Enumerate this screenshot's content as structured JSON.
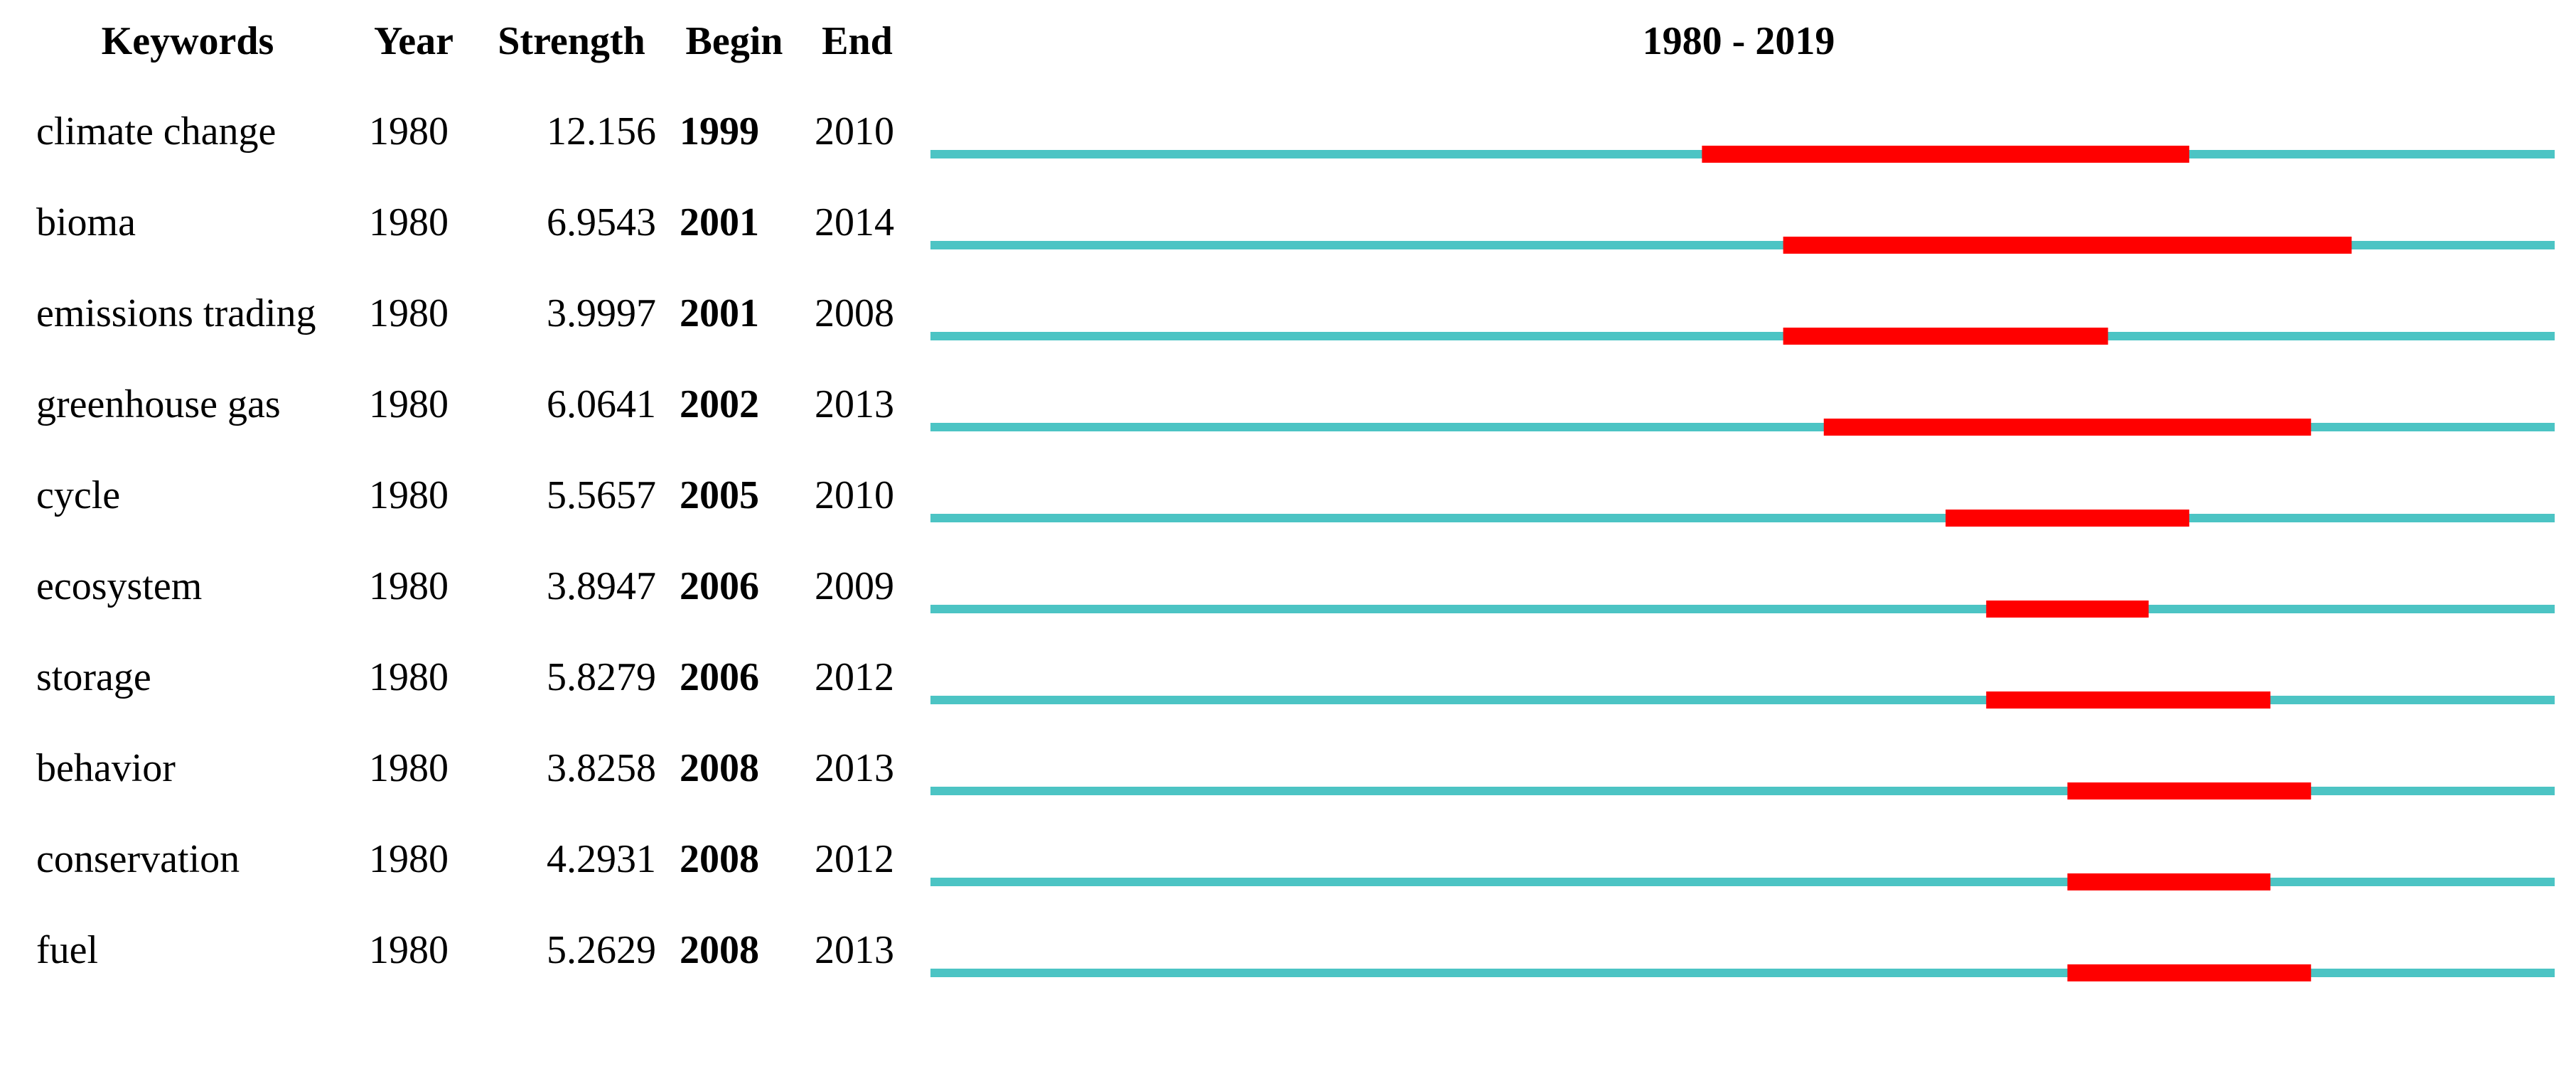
{
  "table": {
    "columns": [
      "Keywords",
      "Year",
      "Strength",
      "Begin",
      "End"
    ],
    "timeline_title": "1980 - 2019",
    "rows": [
      {
        "keyword": "climate change",
        "year": 1980,
        "strength": 12.156,
        "begin": 1999,
        "end": 2010
      },
      {
        "keyword": "bioma",
        "year": 1980,
        "strength": 6.9543,
        "begin": 2001,
        "end": 2014
      },
      {
        "keyword": "emissions trading",
        "year": 1980,
        "strength": 3.9997,
        "begin": 2001,
        "end": 2008
      },
      {
        "keyword": "greenhouse gas",
        "year": 1980,
        "strength": 6.0641,
        "begin": 2002,
        "end": 2013
      },
      {
        "keyword": "cycle",
        "year": 1980,
        "strength": 5.5657,
        "begin": 2005,
        "end": 2010
      },
      {
        "keyword": "ecosystem",
        "year": 1980,
        "strength": 3.8947,
        "begin": 2006,
        "end": 2009
      },
      {
        "keyword": "storage",
        "year": 1980,
        "strength": 5.8279,
        "begin": 2006,
        "end": 2012
      },
      {
        "keyword": "behavior",
        "year": 1980,
        "strength": 3.8258,
        "begin": 2008,
        "end": 2013
      },
      {
        "keyword": "conservation",
        "year": 1980,
        "strength": 4.2931,
        "begin": 2008,
        "end": 2012
      },
      {
        "keyword": "fuel",
        "year": 1980,
        "strength": 5.2629,
        "begin": 2008,
        "end": 2013
      }
    ]
  }
}
